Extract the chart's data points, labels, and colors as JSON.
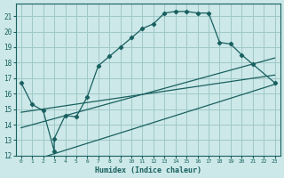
{
  "bg_color": "#cce8e8",
  "grid_color": "#a0c8c8",
  "line_color": "#1a6060",
  "xlabel": "Humidex (Indice chaleur)",
  "xlim": [
    -0.5,
    23.5
  ],
  "ylim": [
    12,
    21.8
  ],
  "yticks": [
    12,
    13,
    14,
    15,
    16,
    17,
    18,
    19,
    20,
    21
  ],
  "xticks": [
    0,
    1,
    2,
    3,
    4,
    5,
    6,
    7,
    8,
    9,
    10,
    11,
    12,
    13,
    14,
    15,
    16,
    17,
    18,
    19,
    20,
    21,
    22,
    23
  ],
  "main_line": {
    "x": [
      0,
      1,
      2,
      3,
      3,
      4,
      5,
      6,
      7,
      8,
      9,
      10,
      11,
      12,
      13,
      14,
      15,
      16,
      17,
      18,
      19,
      20,
      21,
      23
    ],
    "y": [
      16.7,
      15.3,
      14.9,
      12.3,
      13.1,
      14.6,
      14.5,
      15.8,
      17.8,
      18.4,
      19.0,
      19.6,
      20.2,
      20.5,
      21.2,
      21.3,
      21.3,
      21.2,
      21.2,
      19.3,
      19.2,
      18.5,
      17.9,
      16.7
    ]
  },
  "line1": {
    "x": [
      0,
      23
    ],
    "y": [
      13.8,
      18.3
    ]
  },
  "line2": {
    "x": [
      0,
      23
    ],
    "y": [
      14.8,
      17.2
    ]
  },
  "line3": {
    "x": [
      2,
      23
    ],
    "y": [
      11.9,
      16.6
    ]
  }
}
